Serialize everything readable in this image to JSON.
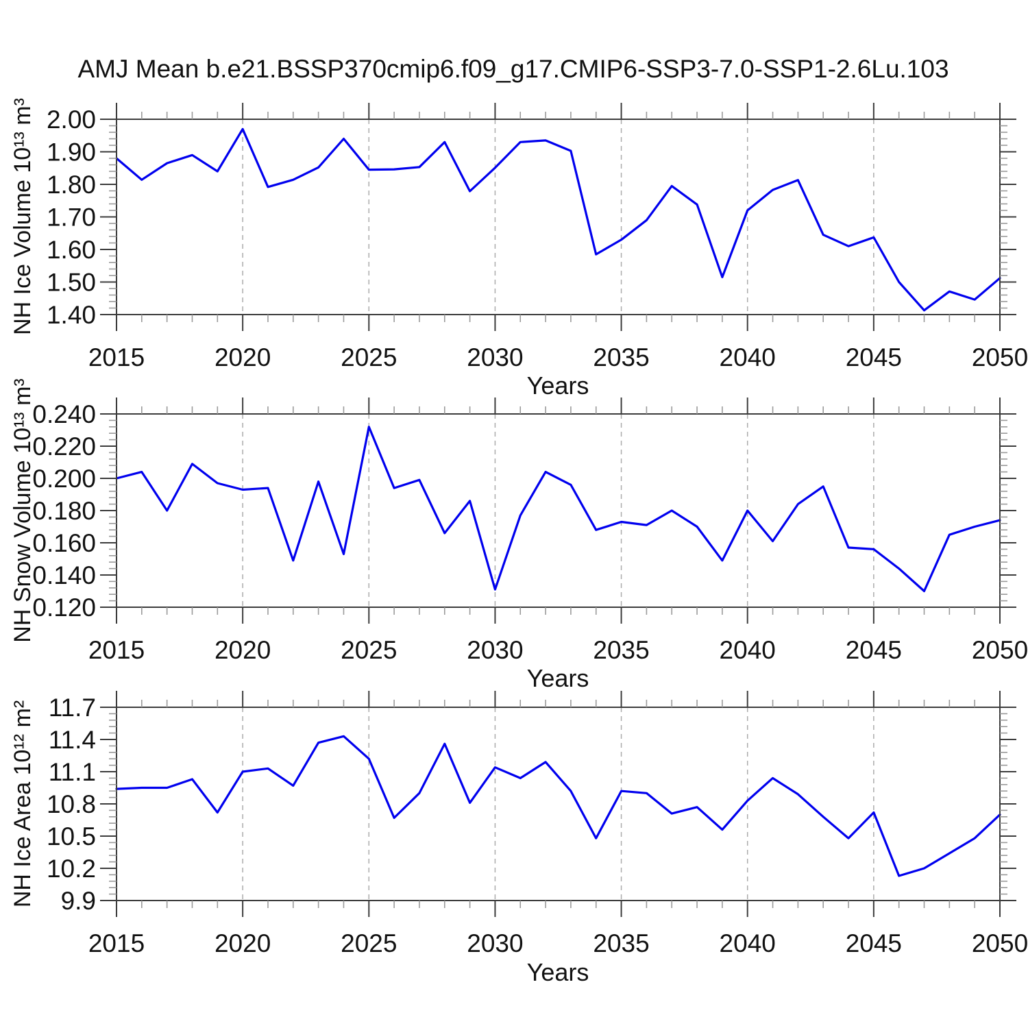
{
  "title": "AMJ Mean b.e21.BSSP370cmip6.f09_g17.CMIP6-SSP3-7.0-SSP1-2.6Lu.103",
  "colors": {
    "line": "#0000ee",
    "grid": "#ababab",
    "frame": "#3c3c3c",
    "major_tick": "#3c3c3c",
    "minor_tick": "#9a9a9a",
    "text": "#111111"
  },
  "chart_data": [
    {
      "type": "line",
      "ylabel": "NH Ice Volume 10¹³ m³",
      "xlabel": "Years",
      "x": [
        2015,
        2016,
        2017,
        2018,
        2019,
        2020,
        2021,
        2022,
        2023,
        2024,
        2025,
        2026,
        2027,
        2028,
        2029,
        2030,
        2031,
        2032,
        2033,
        2034,
        2035,
        2036,
        2037,
        2038,
        2039,
        2040,
        2041,
        2042,
        2043,
        2044,
        2045,
        2046,
        2047,
        2048,
        2049,
        2050
      ],
      "values": [
        1.88,
        1.814,
        1.865,
        1.89,
        1.84,
        1.97,
        1.792,
        1.814,
        1.852,
        1.94,
        1.845,
        1.846,
        1.853,
        1.93,
        1.779,
        1.851,
        1.93,
        1.935,
        1.903,
        1.585,
        1.63,
        1.69,
        1.795,
        1.738,
        1.515,
        1.72,
        1.783,
        1.813,
        1.645,
        1.61,
        1.637,
        1.5,
        1.413,
        1.471,
        1.446,
        1.512
      ],
      "ylim": [
        1.4,
        2.0
      ],
      "yminor_step": 0.02,
      "ytick_values": [
        2.0,
        1.9,
        1.8,
        1.7,
        1.6,
        1.5,
        1.4
      ],
      "ytick_labels": [
        "2.00",
        "1.90",
        "1.80",
        "1.70",
        "1.60",
        "1.50",
        "1.40"
      ],
      "xtick_values": [
        2015,
        2020,
        2025,
        2030,
        2035,
        2040,
        2045,
        2050
      ],
      "xtick_labels": [
        "2015",
        "2020",
        "2025",
        "2030",
        "2035",
        "2040",
        "2045",
        "2050"
      ],
      "grid_x": [
        2020,
        2025,
        2030,
        2035,
        2040,
        2045
      ],
      "grid_on": true,
      "legend": "none"
    },
    {
      "type": "line",
      "ylabel": "NH Snow Volume 10¹³ m³",
      "xlabel": "Years",
      "x": [
        2015,
        2016,
        2017,
        2018,
        2019,
        2020,
        2021,
        2022,
        2023,
        2024,
        2025,
        2026,
        2027,
        2028,
        2029,
        2030,
        2031,
        2032,
        2033,
        2034,
        2035,
        2036,
        2037,
        2038,
        2039,
        2040,
        2041,
        2042,
        2043,
        2044,
        2045,
        2046,
        2047,
        2048,
        2049,
        2050
      ],
      "values": [
        0.2,
        0.204,
        0.18,
        0.209,
        0.197,
        0.193,
        0.194,
        0.149,
        0.198,
        0.153,
        0.232,
        0.194,
        0.199,
        0.166,
        0.186,
        0.131,
        0.177,
        0.204,
        0.196,
        0.168,
        0.173,
        0.171,
        0.18,
        0.17,
        0.149,
        0.18,
        0.161,
        0.184,
        0.195,
        0.157,
        0.156,
        0.144,
        0.13,
        0.165,
        0.17,
        0.174
      ],
      "ylim": [
        0.12,
        0.24
      ],
      "yminor_step": 0.004,
      "ytick_values": [
        0.24,
        0.22,
        0.2,
        0.18,
        0.16,
        0.14,
        0.12
      ],
      "ytick_labels": [
        "0.240",
        "0.220",
        "0.200",
        "0.180",
        "0.160",
        "0.140",
        "0.120"
      ],
      "xtick_values": [
        2015,
        2020,
        2025,
        2030,
        2035,
        2040,
        2045,
        2050
      ],
      "xtick_labels": [
        "2015",
        "2020",
        "2025",
        "2030",
        "2035",
        "2040",
        "2045",
        "2050"
      ],
      "grid_x": [
        2020,
        2025,
        2030,
        2035,
        2040,
        2045
      ],
      "grid_on": true,
      "legend": "none"
    },
    {
      "type": "line",
      "ylabel": "NH Ice Area 10¹² m²",
      "xlabel": "Years",
      "x": [
        2015,
        2016,
        2017,
        2018,
        2019,
        2020,
        2021,
        2022,
        2023,
        2024,
        2025,
        2026,
        2027,
        2028,
        2029,
        2030,
        2031,
        2032,
        2033,
        2034,
        2035,
        2036,
        2037,
        2038,
        2039,
        2040,
        2041,
        2042,
        2043,
        2044,
        2045,
        2046,
        2047,
        2048,
        2049,
        2050
      ],
      "values": [
        10.94,
        10.95,
        10.95,
        11.03,
        10.72,
        11.1,
        11.13,
        10.97,
        11.37,
        11.43,
        11.22,
        10.67,
        10.9,
        11.36,
        10.81,
        11.14,
        11.04,
        11.19,
        10.92,
        10.48,
        10.92,
        10.9,
        10.71,
        10.77,
        10.56,
        10.83,
        11.04,
        10.89,
        10.68,
        10.48,
        10.72,
        10.13,
        10.2,
        10.34,
        10.48,
        10.7
      ],
      "ylim": [
        9.9,
        11.7
      ],
      "yminor_step": 0.06,
      "ytick_values": [
        11.7,
        11.4,
        11.1,
        10.8,
        10.5,
        10.2,
        9.9
      ],
      "ytick_labels": [
        "11.7",
        "11.4",
        "11.1",
        "10.8",
        "10.5",
        "10.2",
        "9.9"
      ],
      "xtick_values": [
        2015,
        2020,
        2025,
        2030,
        2035,
        2040,
        2045,
        2050
      ],
      "xtick_labels": [
        "2015",
        "2020",
        "2025",
        "2030",
        "2035",
        "2040",
        "2045",
        "2050"
      ],
      "grid_x": [
        2020,
        2025,
        2030,
        2035,
        2040,
        2045
      ],
      "grid_on": true,
      "legend": "none"
    }
  ]
}
